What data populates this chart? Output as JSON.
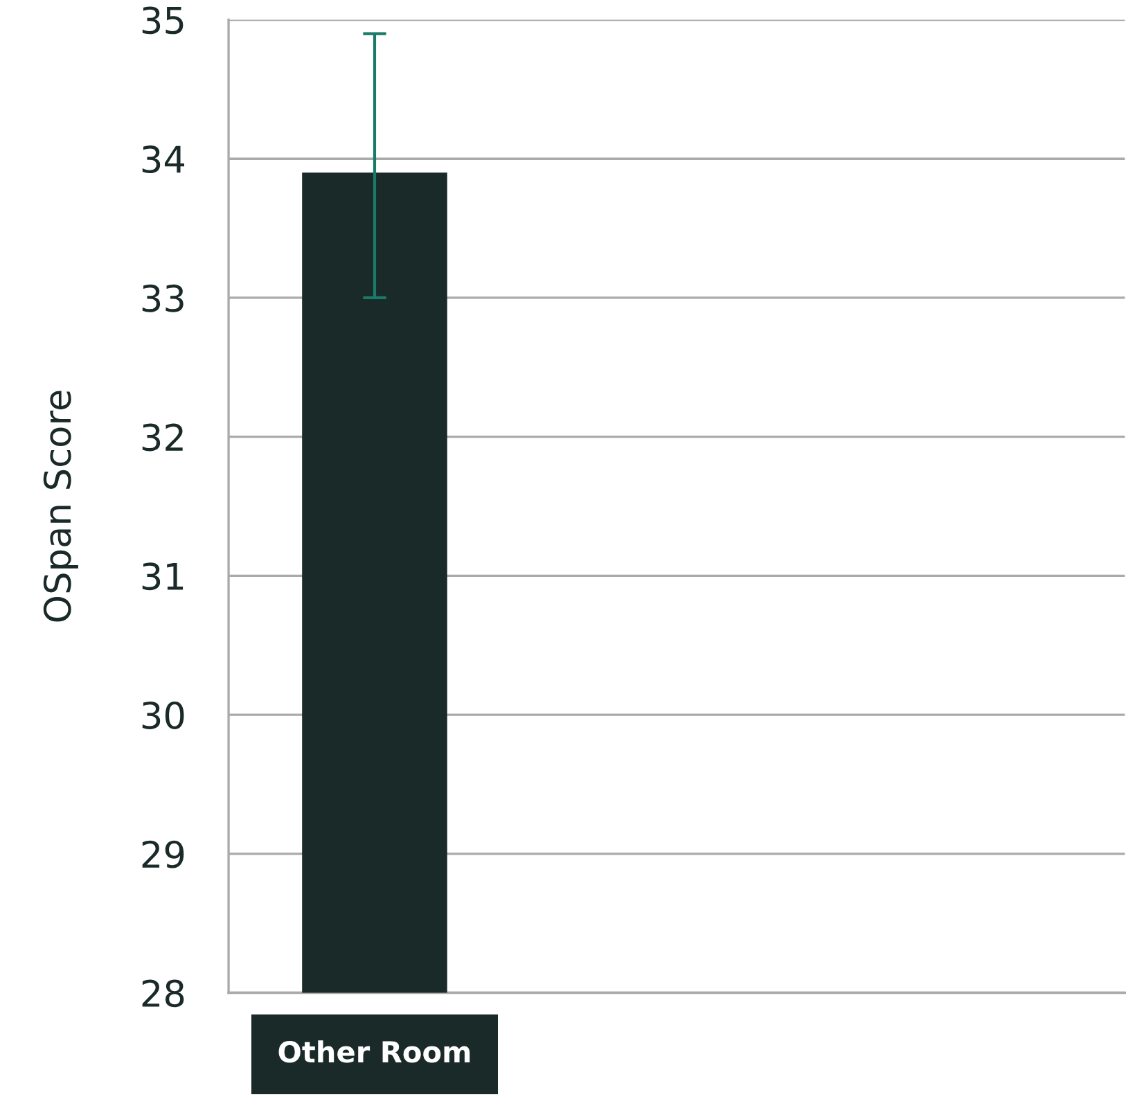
{
  "chart_data": {
    "type": "bar",
    "ylabel": "OSpan Score",
    "categories": [
      "Other Room"
    ],
    "values": [
      33.9
    ],
    "errors": [
      [
        33.0,
        34.9
      ]
    ],
    "color": "#1a2a28",
    "ylim": [
      28,
      35
    ],
    "yticks": [
      28,
      29,
      30,
      31,
      32,
      33,
      34,
      35
    ],
    "grid": "y"
  }
}
